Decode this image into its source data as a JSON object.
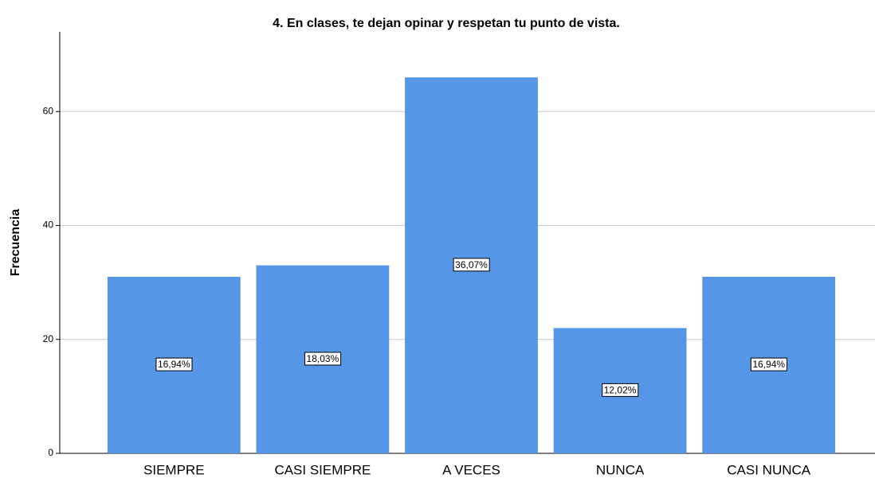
{
  "chart_data": {
    "type": "bar",
    "title": "4. En clases, te dejan opinar y respetan tu punto de vista.",
    "ylabel": "Frecuencia",
    "categories": [
      "SIEMPRE",
      "CASI SIEMPRE",
      "A VECES",
      "NUNCA",
      "CASI NUNCA"
    ],
    "values": [
      31,
      33,
      66,
      22,
      31
    ],
    "data_labels": [
      "16,94%",
      "18,03%",
      "36,07%",
      "12,02%",
      "16,94%"
    ],
    "color": "#5596e6",
    "ylim": [
      0,
      74
    ],
    "yticks": [
      0,
      20,
      40,
      60
    ],
    "grid": true
  }
}
